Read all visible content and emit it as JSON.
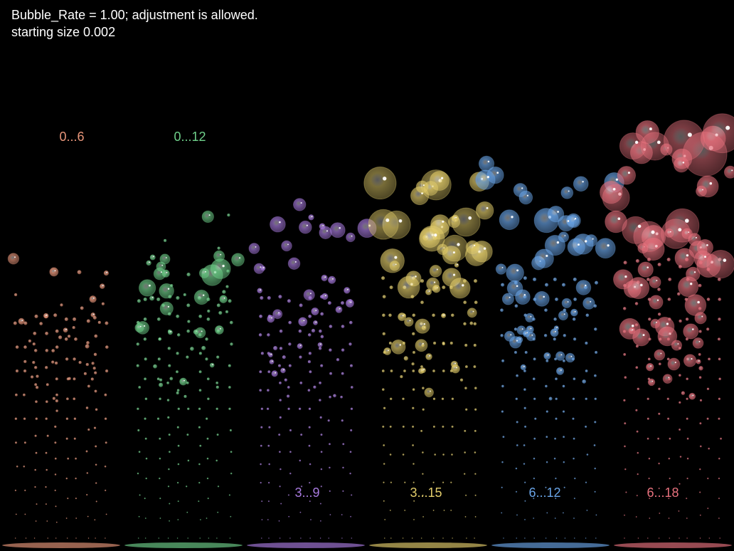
{
  "header": {
    "line1": "Bubble_Rate = 1.00; adjustment is allowed.",
    "line2": "starting size 0.002"
  },
  "columns": [
    {
      "label": "0...6",
      "color": "#e8967a",
      "min": 0,
      "max": 6
    },
    {
      "label": "0...12",
      "color": "#6fd08a",
      "min": 0,
      "max": 12
    },
    {
      "label": "3...9",
      "color": "#a97be0",
      "min": 3,
      "max": 9
    },
    {
      "label": "3...15",
      "color": "#e3cd6b",
      "min": 3,
      "max": 15
    },
    {
      "label": "6...12",
      "color": "#6aa5e8",
      "min": 6,
      "max": 12
    },
    {
      "label": "6...18",
      "color": "#e8727e",
      "min": 6,
      "max": 18
    }
  ]
}
